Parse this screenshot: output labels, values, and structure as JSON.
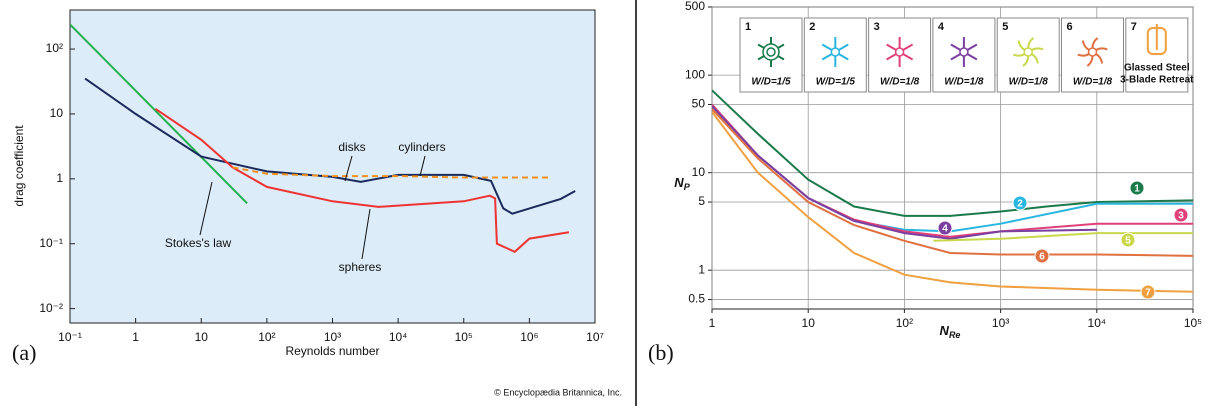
{
  "chart_data": [
    {
      "type": "line",
      "panel_label": "(a)",
      "credit": "© Encyclopædia Britannica, Inc.",
      "xlabel": "Reynolds number",
      "ylabel": "drag coefficient",
      "xscale": "log",
      "yscale": "log",
      "grid": false,
      "background": "#dcecf8",
      "xlim": [
        0.1,
        10000000
      ],
      "ylim": [
        0.006,
        400
      ],
      "xticks": [
        {
          "value": 0.1,
          "label": "10⁻¹"
        },
        1,
        10,
        {
          "value": 100,
          "label": "10²"
        },
        {
          "value": 1000,
          "label": "10³"
        },
        {
          "value": 10000,
          "label": "10⁴"
        },
        {
          "value": 100000,
          "label": "10⁵"
        },
        {
          "value": 1000000,
          "label": "10⁶"
        },
        {
          "value": 10000000,
          "label": "10⁷"
        }
      ],
      "yticks": [
        {
          "value": 0.01,
          "label": "10⁻²"
        },
        {
          "value": 0.1,
          "label": "10⁻¹"
        },
        1,
        10,
        {
          "value": 100,
          "label": "10²"
        }
      ],
      "series": [
        {
          "name": "Stokes's law",
          "color": "#22b14c",
          "x": [
            0.1,
            50
          ],
          "values": [
            240,
            0.42
          ]
        },
        {
          "name": "cylinders",
          "color": "#1b2a5c",
          "x": [
            0.17,
            1,
            10,
            100,
            1000,
            2700,
            10000,
            100000,
            260000,
            400000,
            550000,
            3000000,
            5000000
          ],
          "values": [
            35,
            10,
            2.2,
            1.3,
            1.07,
            0.9,
            1.15,
            1.15,
            0.93,
            0.35,
            0.29,
            0.49,
            0.65
          ]
        },
        {
          "name": "spheres",
          "color": "#ee3333",
          "x": [
            2,
            10,
            30,
            100,
            1000,
            5000,
            100000,
            250000,
            300000,
            320000,
            600000,
            1000000,
            4000000
          ],
          "values": [
            12,
            4,
            1.5,
            0.75,
            0.45,
            0.37,
            0.45,
            0.55,
            0.5,
            0.1,
            0.075,
            0.12,
            0.15
          ]
        },
        {
          "name": "disks",
          "color": "#f0901e",
          "dash": true,
          "x": [
            30,
            100,
            1000,
            10000,
            100000,
            2000000
          ],
          "values": [
            1.5,
            1.2,
            1.1,
            1.1,
            1.05,
            1.05
          ]
        }
      ]
    },
    {
      "type": "line",
      "panel_label": "(b)",
      "xlabel": {
        "text": "N",
        "subscript": "Re"
      },
      "ylabel": {
        "text": "N",
        "subscript": "P"
      },
      "xscale": "log",
      "yscale": "log",
      "grid": true,
      "background": "#ffffff",
      "xlim": [
        1,
        100000
      ],
      "ylim": [
        0.4,
        500
      ],
      "xticks": [
        1,
        10,
        {
          "value": 100,
          "label": "10²"
        },
        {
          "value": 1000,
          "label": "10³"
        },
        {
          "value": 10000,
          "label": "10⁴"
        },
        {
          "value": 100000,
          "label": "10⁵"
        }
      ],
      "yticks": [
        0.5,
        1,
        5,
        10,
        50,
        100,
        500
      ],
      "series": [
        {
          "name": "1",
          "color": "#1a7a4a",
          "note": "W/D=1/5",
          "x": [
            1,
            3,
            10,
            30,
            100,
            300,
            1000,
            3000,
            10000,
            100000
          ],
          "values": [
            70,
            25,
            8.5,
            4.5,
            3.6,
            3.6,
            4.0,
            4.5,
            5.0,
            5.2
          ]
        },
        {
          "name": "2",
          "color": "#29b6e0",
          "note": "W/D=1/5",
          "x": [
            1,
            3,
            10,
            30,
            100,
            300,
            1000,
            10000,
            100000
          ],
          "values": [
            50,
            15,
            5.5,
            3.2,
            2.6,
            2.5,
            3.0,
            4.8,
            4.8
          ]
        },
        {
          "name": "3",
          "color": "#e0407a",
          "note": "W/D=1/8",
          "x": [
            1,
            3,
            10,
            30,
            100,
            300,
            1000,
            10000,
            100000
          ],
          "values": [
            50,
            15,
            5.5,
            3.3,
            2.5,
            2.2,
            2.5,
            3,
            3
          ]
        },
        {
          "name": "4",
          "color": "#7b3fa0",
          "note": "W/D=1/8",
          "x": [
            1,
            3,
            10,
            30,
            100,
            300,
            1000,
            10000
          ],
          "values": [
            48,
            15,
            5.5,
            3.2,
            2.4,
            2.1,
            2.5,
            2.6
          ]
        },
        {
          "name": "5",
          "color": "#c8d84a",
          "note": "W/D=1/8",
          "x": [
            200,
            1000,
            10000,
            100000
          ],
          "values": [
            2.0,
            2.1,
            2.4,
            2.4
          ]
        },
        {
          "name": "6",
          "color": "#e07040",
          "note": "W/D=1/8",
          "x": [
            1,
            3,
            10,
            30,
            100,
            300,
            1000,
            10000,
            100000
          ],
          "values": [
            45,
            14,
            5,
            2.9,
            2,
            1.5,
            1.45,
            1.45,
            1.4
          ]
        },
        {
          "name": "7",
          "color": "#f0a040",
          "note": [
            "Glassed Steel",
            "3-Blade Retreat"
          ],
          "x": [
            1,
            3,
            10,
            30,
            100,
            300,
            1000,
            10000,
            100000
          ],
          "values": [
            42,
            10,
            3.5,
            1.5,
            0.9,
            0.75,
            0.68,
            0.63,
            0.6
          ]
        }
      ]
    }
  ]
}
